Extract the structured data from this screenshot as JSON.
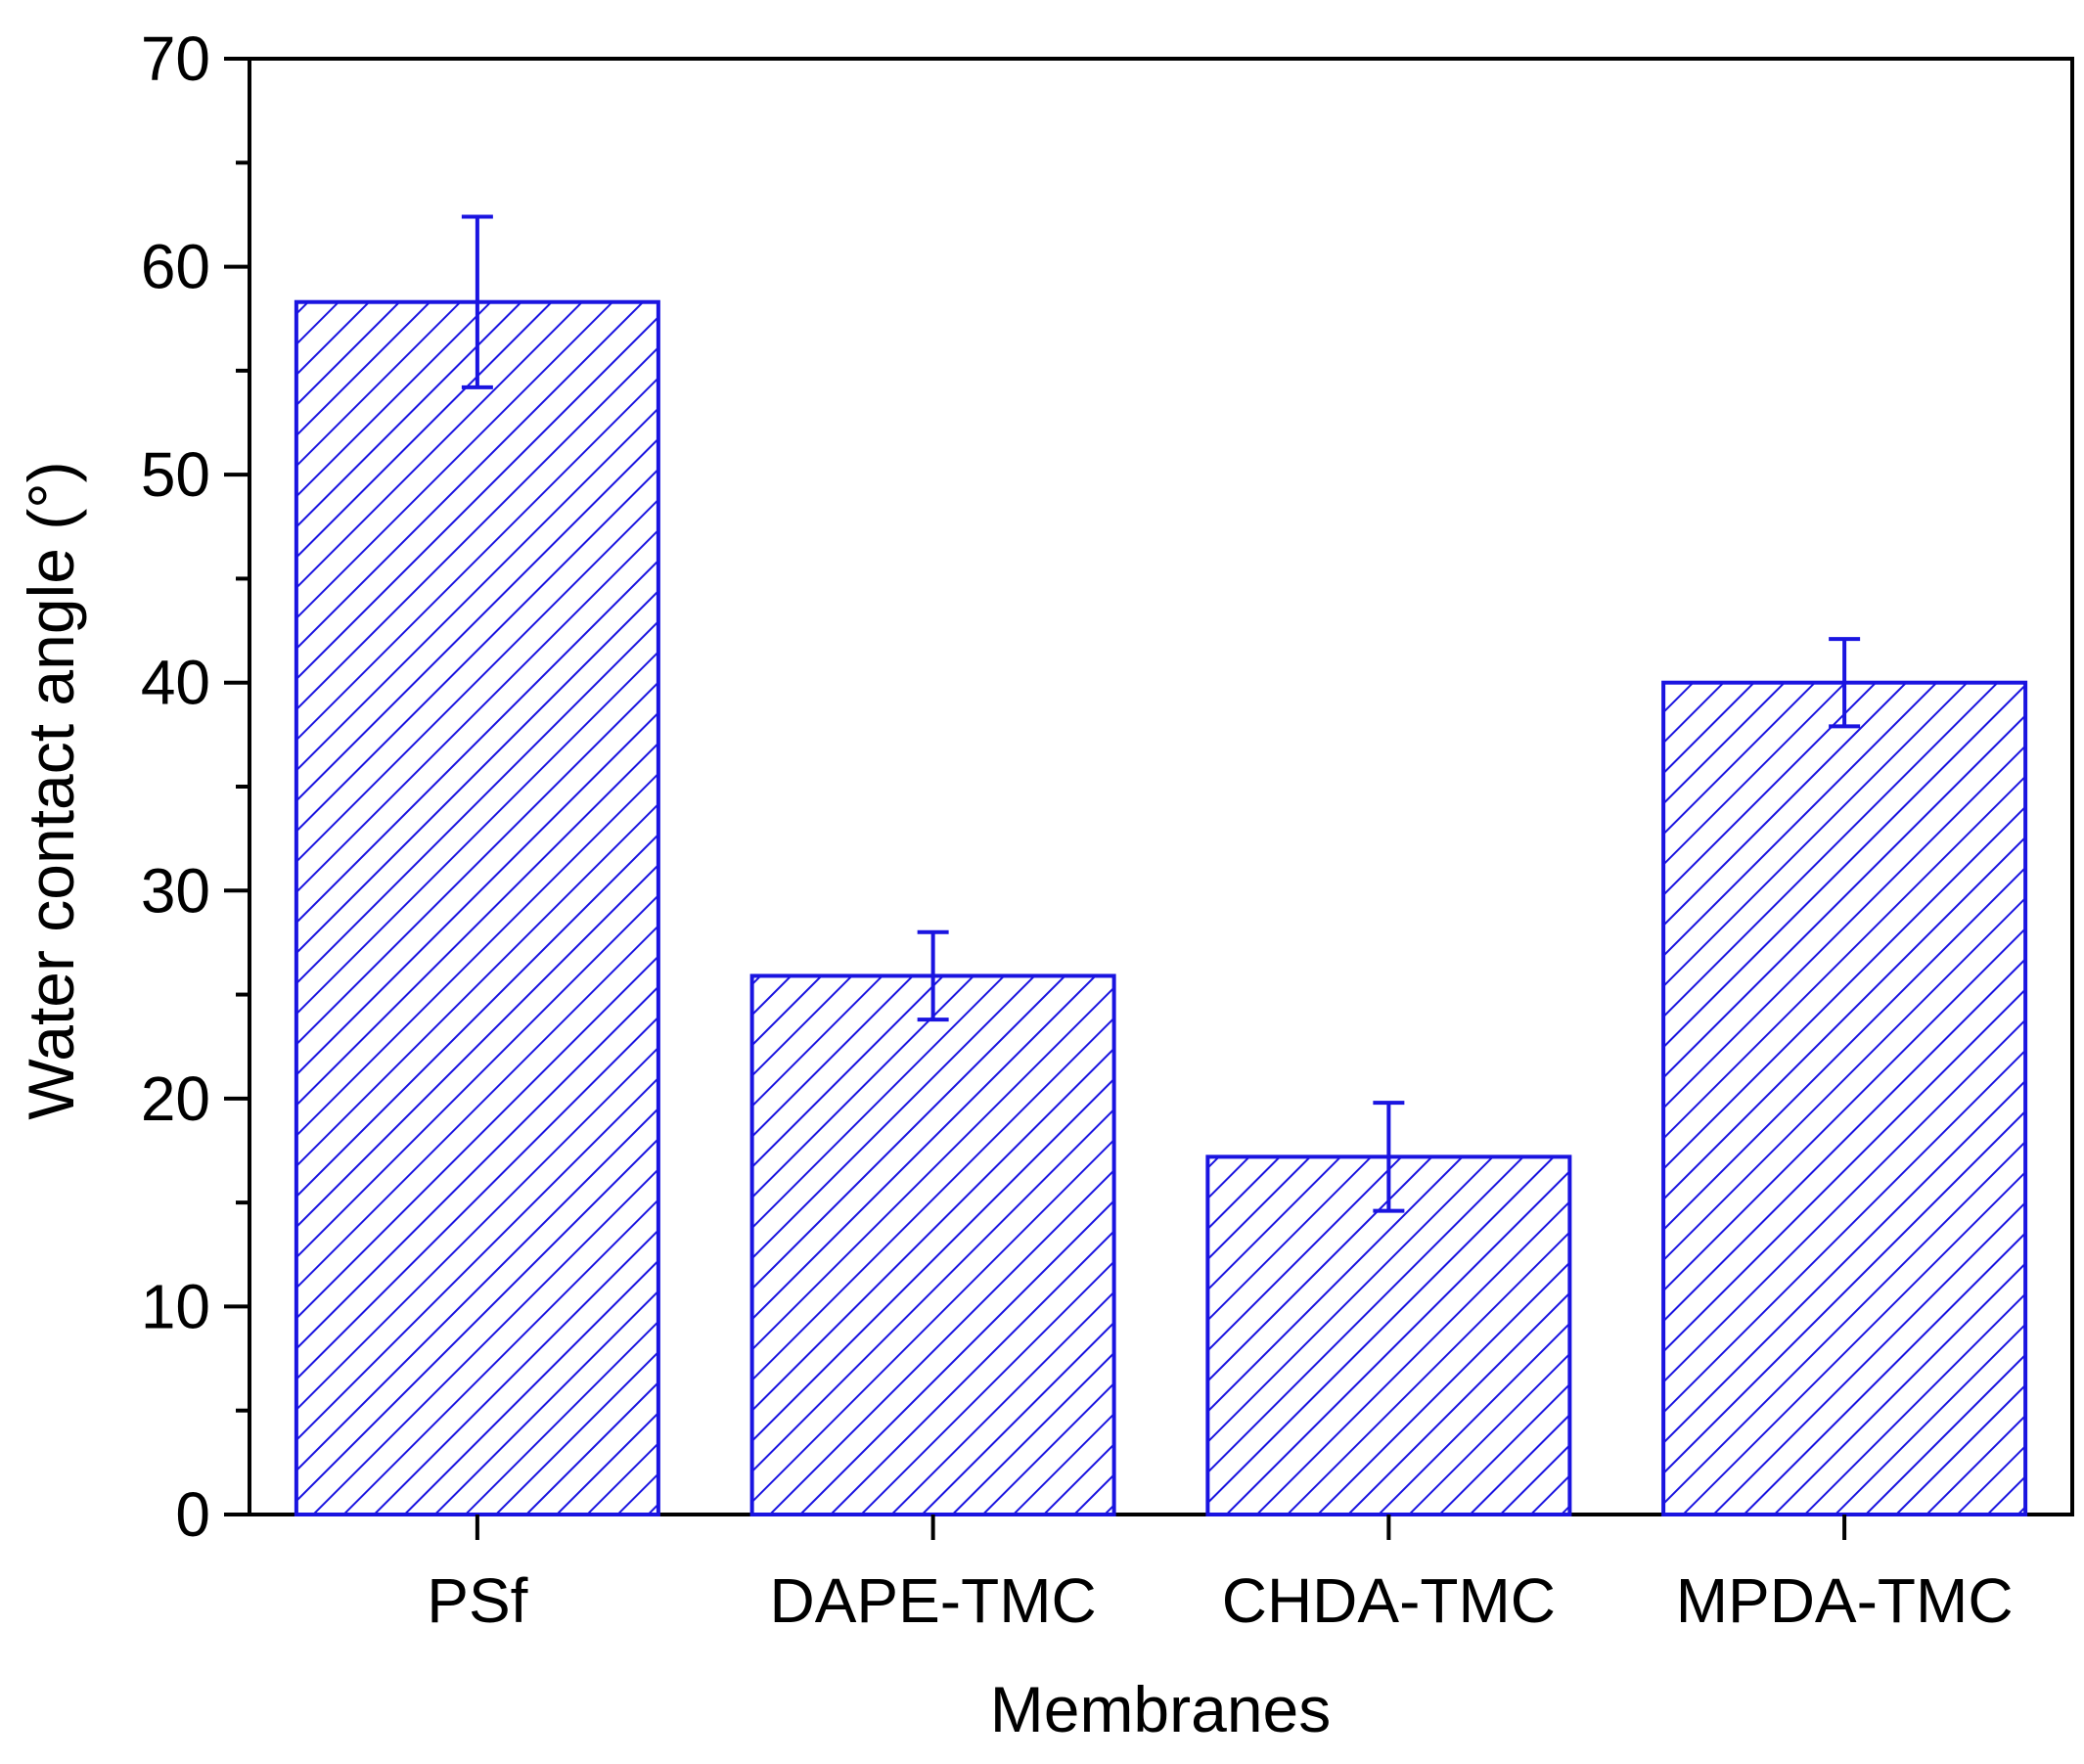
{
  "chart_data": {
    "type": "bar",
    "title": "",
    "xlabel": "Membranes",
    "ylabel": "Water contact angle (°)",
    "ylim": [
      0,
      70
    ],
    "y_ticks": [
      "0",
      "10",
      "20",
      "30",
      "40",
      "50",
      "60",
      "70"
    ],
    "y_minor_step": 5,
    "grid": false,
    "legend": "none",
    "categories": [
      "PSf",
      "DAPE-TMC",
      "CHDA-TMC",
      "MPDA-TMC"
    ],
    "values": [
      58.3,
      25.9,
      17.2,
      40.0
    ],
    "errors": [
      4.1,
      2.1,
      2.6,
      2.1
    ],
    "bar_fill": "hatched",
    "colors": {
      "bar": "#1a14e0",
      "axis": "#000000"
    }
  }
}
